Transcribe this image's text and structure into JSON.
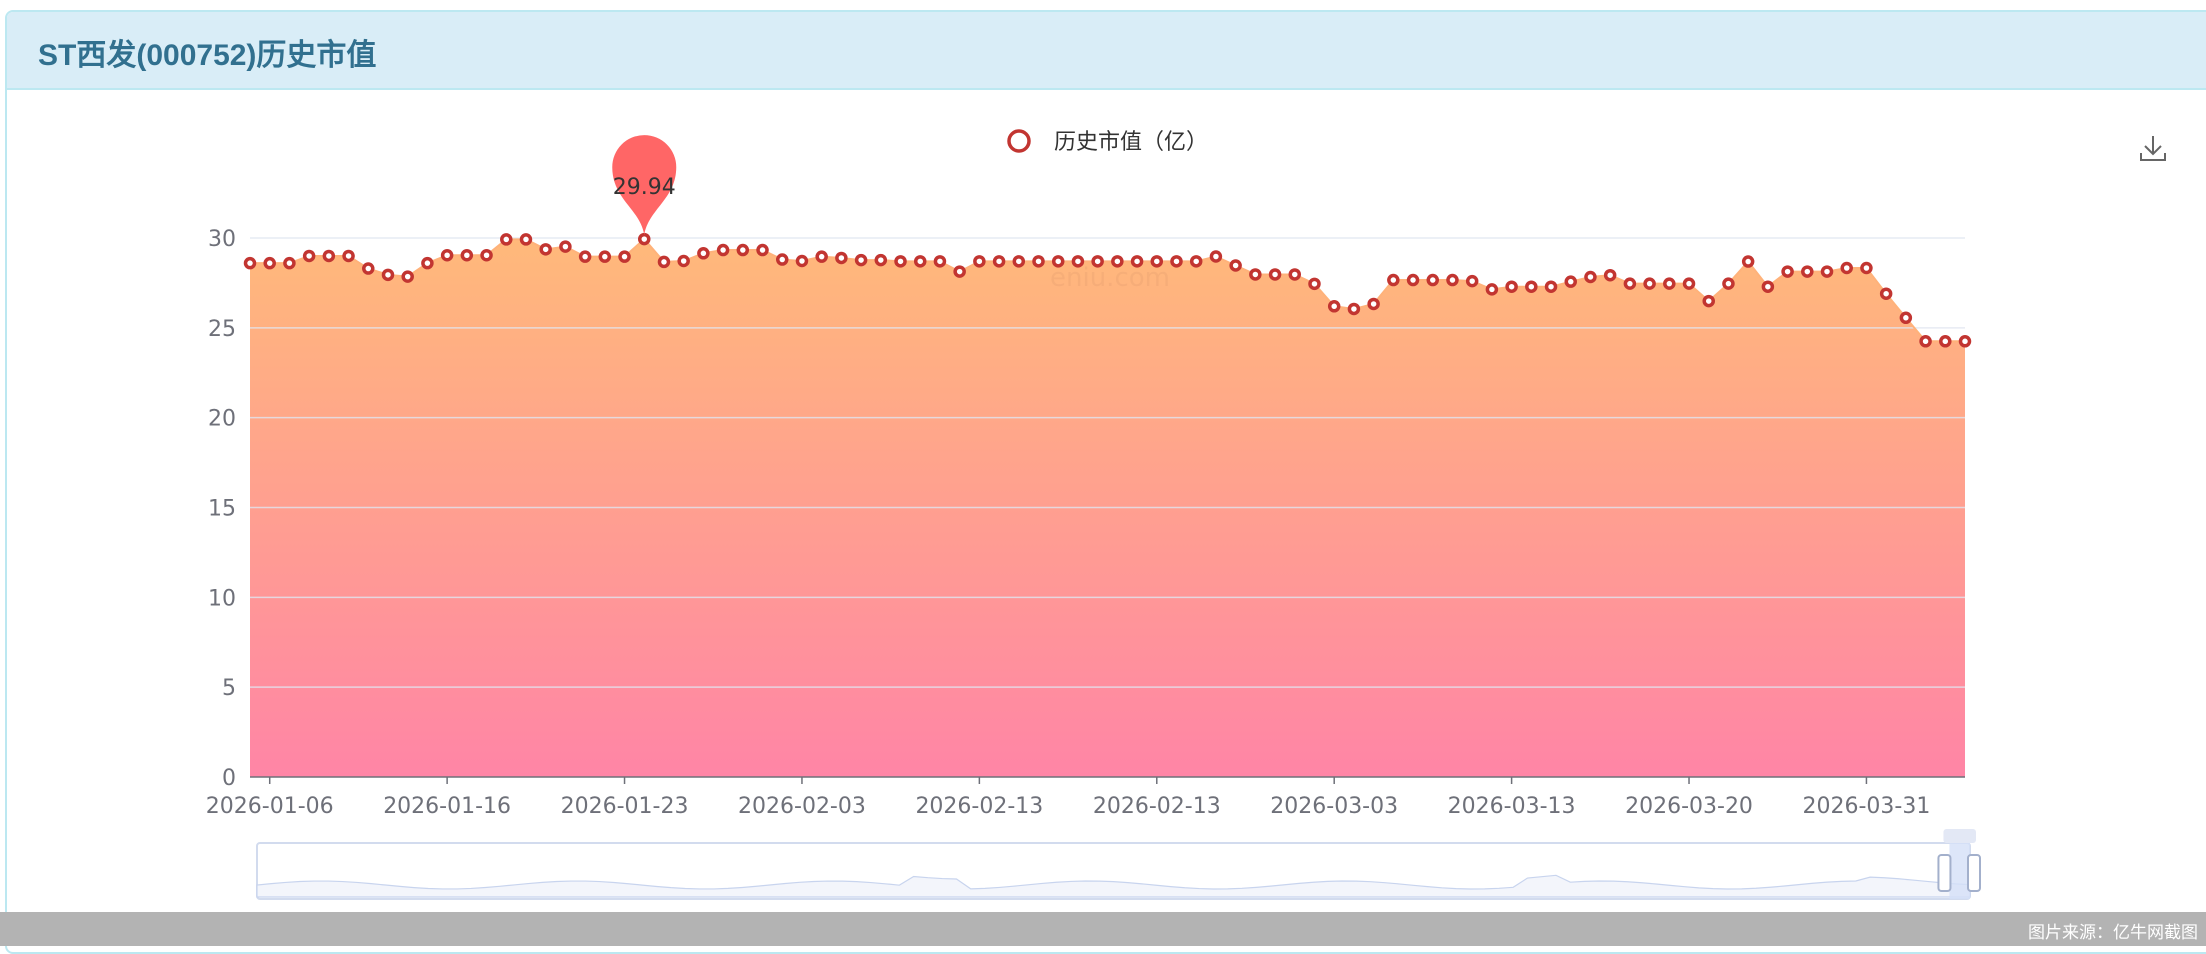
{
  "header": {
    "title": "ST西发(000752)历史市值"
  },
  "footer": {
    "source": "图片来源：亿牛网截图"
  },
  "toolbox": {
    "download_icon": "download-icon"
  },
  "watermark": "eniu.com",
  "colors": {
    "marker": "#c23531",
    "area_top": "#ffb97a",
    "area_bottom": "#ff85a6",
    "pin": "#ff6666",
    "grid": "#e0e6f1",
    "header_bg": "#d9edf7",
    "header_text": "#31708f"
  },
  "chart_data": {
    "type": "area",
    "legend": {
      "label": "历史市值（亿）",
      "position": "top-center"
    },
    "ylim": [
      0,
      30
    ],
    "yticks": [
      "0",
      "5",
      "10",
      "15",
      "20",
      "25",
      "30"
    ],
    "grid": true,
    "xticks": [
      {
        "index": 1,
        "label": "2026-01-06"
      },
      {
        "index": 10,
        "label": "2026-01-16"
      },
      {
        "index": 19,
        "label": "2026-01-23"
      },
      {
        "index": 28,
        "label": "2026-02-03"
      },
      {
        "index": 37,
        "label": "2026-02-13"
      },
      {
        "index": 46,
        "label": "2026-02-13"
      },
      {
        "index": 55,
        "label": "2026-03-03"
      },
      {
        "index": 64,
        "label": "2026-03-13"
      },
      {
        "index": 73,
        "label": "2026-03-20"
      },
      {
        "index": 82,
        "label": "2026-03-31"
      }
    ],
    "values": [
      28.6,
      28.6,
      28.6,
      29.0,
      29.0,
      29.0,
      28.3,
      27.95,
      27.85,
      28.6,
      29.04,
      29.04,
      29.04,
      29.92,
      29.92,
      29.37,
      29.52,
      28.96,
      28.96,
      28.96,
      29.94,
      28.67,
      28.72,
      29.15,
      29.33,
      29.33,
      29.33,
      28.8,
      28.72,
      28.96,
      28.89,
      28.77,
      28.77,
      28.7,
      28.7,
      28.7,
      28.13,
      28.7,
      28.7,
      28.7,
      28.7,
      28.7,
      28.7,
      28.7,
      28.7,
      28.7,
      28.7,
      28.7,
      28.7,
      28.97,
      28.47,
      27.97,
      27.97,
      27.97,
      27.45,
      26.2,
      26.05,
      26.33,
      27.66,
      27.66,
      27.66,
      27.66,
      27.6,
      27.14,
      27.29,
      27.29,
      27.29,
      27.57,
      27.83,
      27.93,
      27.46,
      27.46,
      27.46,
      27.46,
      26.49,
      27.46,
      28.69,
      27.29,
      28.13,
      28.13,
      28.13,
      28.33,
      28.33,
      26.9,
      25.56,
      24.25,
      24.25,
      24.25
    ],
    "max_marker": {
      "index": 20,
      "label": "29.94"
    },
    "datazoom": {
      "start_percent": 98.8,
      "end_percent": 100
    }
  }
}
